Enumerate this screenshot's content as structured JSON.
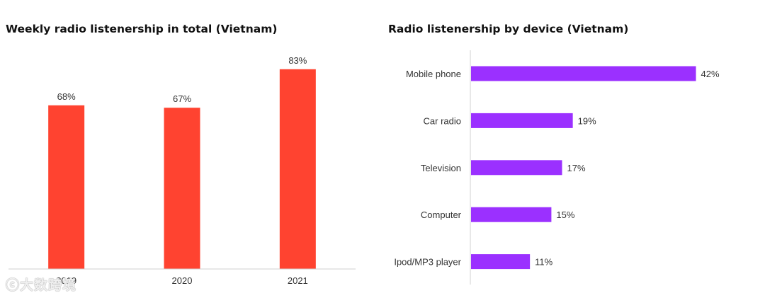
{
  "chart_data": [
    {
      "type": "bar",
      "title": "Weekly radio listenership in total (Vietnam)",
      "categories": [
        "2019",
        "2020",
        "2021"
      ],
      "values": [
        68,
        67,
        83
      ],
      "data_labels": [
        "68%",
        "67%",
        "83%"
      ],
      "unit": "%",
      "ylim": [
        0,
        100
      ],
      "grid": false,
      "bar_color": "#ff4330"
    },
    {
      "type": "bar",
      "orientation": "horizontal",
      "title": "Radio listenership by device (Vietnam)",
      "categories": [
        "Mobile phone",
        "Car radio",
        "Television",
        "Computer",
        "Ipod/MP3 player"
      ],
      "values": [
        42,
        19,
        17,
        15,
        11
      ],
      "data_labels": [
        "42%",
        "19%",
        "17%",
        "15%",
        "11%"
      ],
      "unit": "%",
      "xlim": [
        0,
        50
      ],
      "grid": false,
      "bar_color": "#9b30ff"
    }
  ],
  "watermark": {
    "text": "大数跨境"
  }
}
